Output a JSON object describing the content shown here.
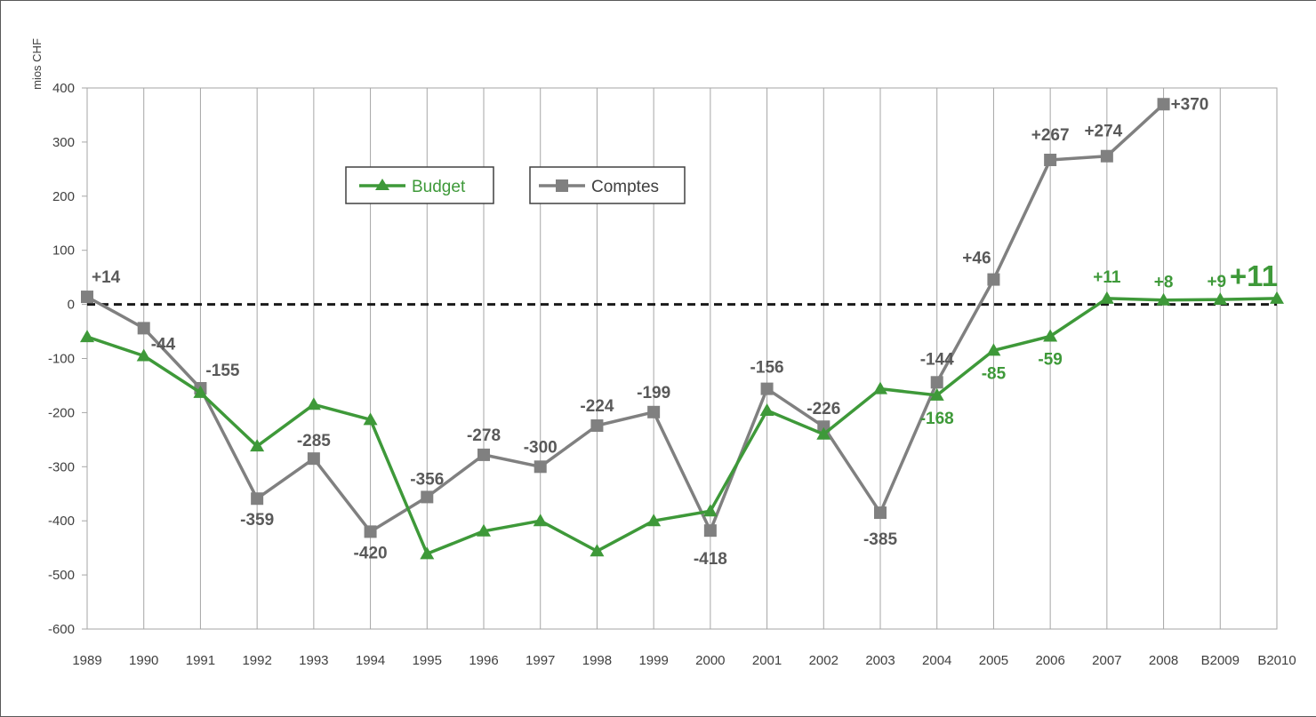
{
  "chart_data": {
    "type": "line",
    "ylabel": "mios CHF",
    "ylim": [
      -600,
      400
    ],
    "yticks": [
      400,
      300,
      200,
      100,
      0,
      -100,
      -200,
      -300,
      -400,
      -500,
      -600
    ],
    "categories": [
      "1989",
      "1990",
      "1991",
      "1992",
      "1993",
      "1994",
      "1995",
      "1996",
      "1997",
      "1998",
      "1999",
      "2000",
      "2001",
      "2002",
      "2003",
      "2004",
      "2005",
      "2006",
      "2007",
      "2008",
      "B2009",
      "B2010"
    ],
    "grid": "vertical",
    "zero_line": "dashed",
    "legend_placement": "top-left",
    "series": [
      {
        "name": "Budget",
        "color": "#3E9939",
        "marker": "triangle",
        "values": [
          -60,
          -95,
          -163,
          -262,
          -185,
          -213,
          -461,
          -419,
          -400,
          -456,
          -400,
          -382,
          -196,
          -240,
          -156,
          -168,
          -85,
          -59,
          11,
          8,
          9,
          11
        ],
        "labels": [
          "",
          "",
          "",
          "",
          "",
          "",
          "",
          "",
          "",
          "",
          "",
          "",
          "",
          "",
          "",
          "-168",
          "-85",
          "-59",
          "+11",
          "+8",
          "+9",
          "+11"
        ]
      },
      {
        "name": "Comptes",
        "color": "#808080",
        "marker": "square",
        "values": [
          14,
          -44,
          -155,
          -359,
          -285,
          -420,
          -356,
          -278,
          -300,
          -224,
          -199,
          -418,
          -156,
          -226,
          -385,
          -144,
          46,
          267,
          274,
          370,
          null,
          null
        ],
        "labels": [
          "+14",
          "-44",
          "-155",
          "-359",
          "-285",
          "-420",
          "-356",
          "-278",
          "-300",
          "-224",
          "-199",
          "-418",
          "-156",
          "-226",
          "-385",
          "-144",
          "+46",
          "+267",
          "+274",
          "+370",
          "",
          ""
        ]
      }
    ]
  }
}
